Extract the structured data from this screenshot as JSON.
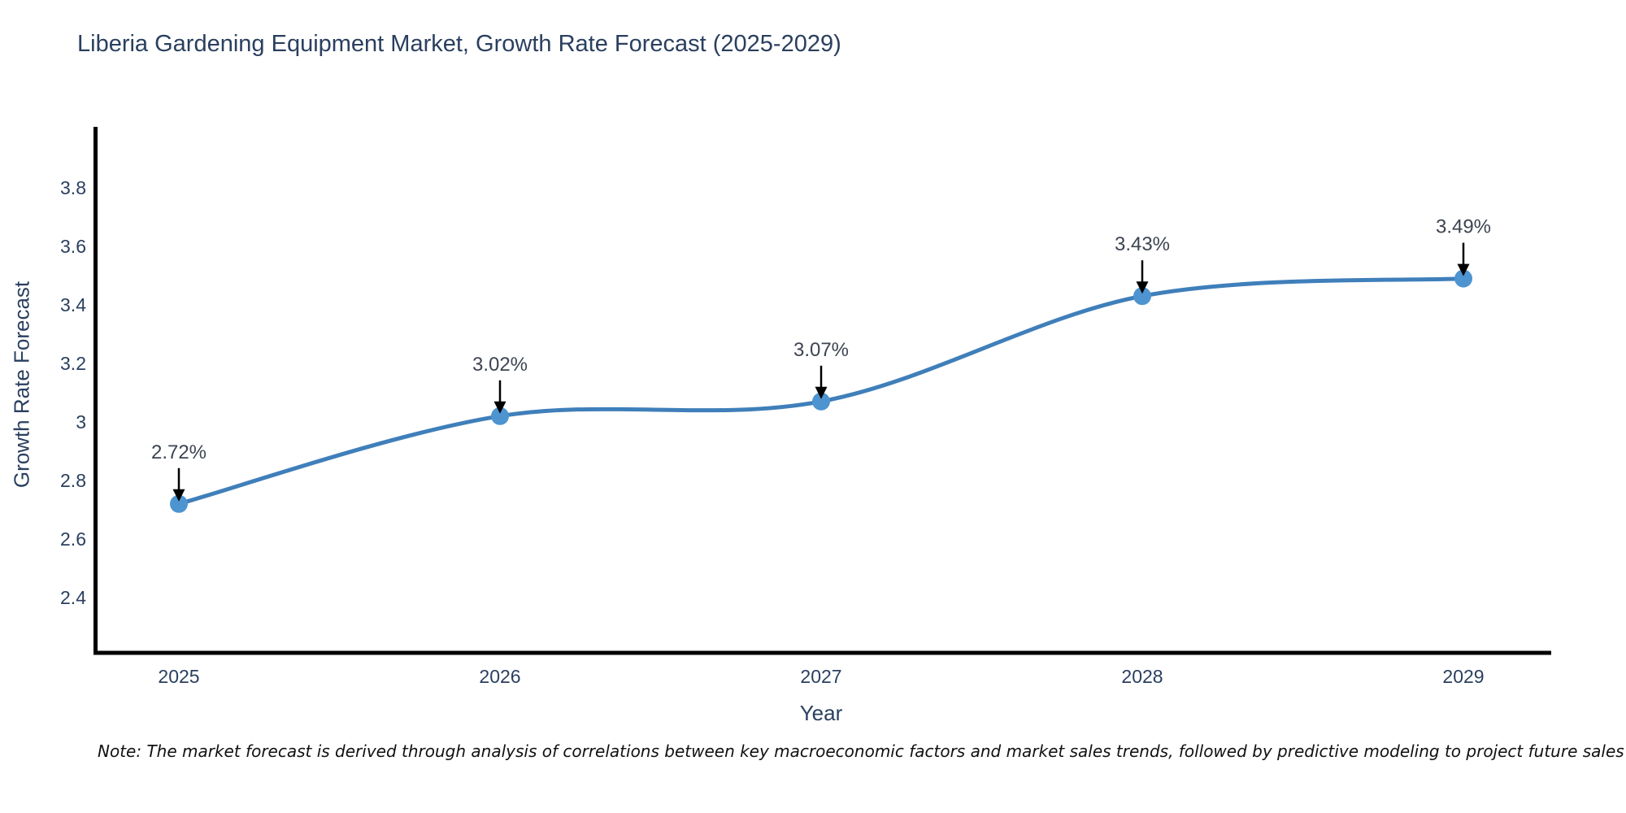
{
  "note": {
    "text": "Note: The market forecast is derived through analysis of correlations between key macroeconomic factors and market sales trends, followed by predictive modeling to project future sales"
  },
  "chart_data": {
    "type": "line",
    "title": "Liberia Gardening Equipment Market, Growth Rate Forecast (2025-2029)",
    "xlabel": "Year",
    "ylabel": "Growth Rate Forecast",
    "categories": [
      "2025",
      "2026",
      "2027",
      "2028",
      "2029"
    ],
    "values": [
      2.72,
      3.02,
      3.07,
      3.43,
      3.49
    ],
    "data_labels": [
      "2.72%",
      "3.02%",
      "3.07%",
      "3.43%",
      "3.49%"
    ],
    "ytick_labels": [
      "2.4",
      "2.6",
      "2.8",
      "3",
      "3.2",
      "3.4",
      "3.6",
      "3.8"
    ],
    "ylim": [
      2.21,
      4.0
    ],
    "line_shape": "spline",
    "grid": false,
    "legend": "none",
    "annotations": "value labels with black arrows pointing to markers",
    "colors": {
      "line": "#3f7fba",
      "marker": "#4d94d0",
      "arrow": "#000000",
      "axis": "#000000",
      "axis_text": "#2a3f5f",
      "annotation_text": "#3d4451",
      "note_text": "#111111",
      "background": "#ffffff"
    }
  }
}
